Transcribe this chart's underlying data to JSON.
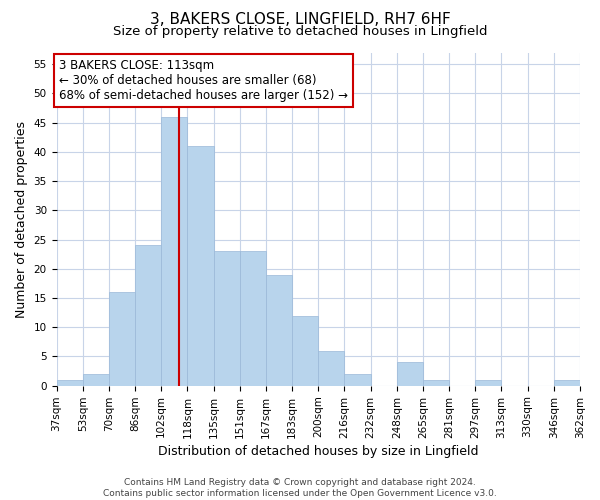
{
  "title": "3, BAKERS CLOSE, LINGFIELD, RH7 6HF",
  "subtitle": "Size of property relative to detached houses in Lingfield",
  "xlabel": "Distribution of detached houses by size in Lingfield",
  "ylabel": "Number of detached properties",
  "bin_labels": [
    "37sqm",
    "53sqm",
    "70sqm",
    "86sqm",
    "102sqm",
    "118sqm",
    "135sqm",
    "151sqm",
    "167sqm",
    "183sqm",
    "200sqm",
    "216sqm",
    "232sqm",
    "248sqm",
    "265sqm",
    "281sqm",
    "297sqm",
    "313sqm",
    "330sqm",
    "346sqm",
    "362sqm"
  ],
  "bar_heights": [
    1,
    2,
    16,
    24,
    46,
    41,
    23,
    23,
    19,
    12,
    6,
    2,
    0,
    4,
    1,
    0,
    1,
    0,
    0,
    1
  ],
  "bar_color": "#b8d4ec",
  "bar_edgecolor": "#9ab8d8",
  "vline_color": "#cc0000",
  "annotation_line1": "3 BAKERS CLOSE: 113sqm",
  "annotation_line2": "← 30% of detached houses are smaller (68)",
  "annotation_line3": "68% of semi-detached houses are larger (152) →",
  "annotation_box_facecolor": "#ffffff",
  "annotation_box_edgecolor": "#cc0000",
  "ylim": [
    0,
    57
  ],
  "yticks": [
    0,
    5,
    10,
    15,
    20,
    25,
    30,
    35,
    40,
    45,
    50,
    55
  ],
  "background_color": "#ffffff",
  "grid_color": "#c8d4e8",
  "footer_text": "Contains HM Land Registry data © Crown copyright and database right 2024.\nContains public sector information licensed under the Open Government Licence v3.0.",
  "title_fontsize": 11,
  "subtitle_fontsize": 9.5,
  "axis_label_fontsize": 9,
  "tick_fontsize": 7.5,
  "annotation_fontsize": 8.5,
  "footer_fontsize": 6.5
}
